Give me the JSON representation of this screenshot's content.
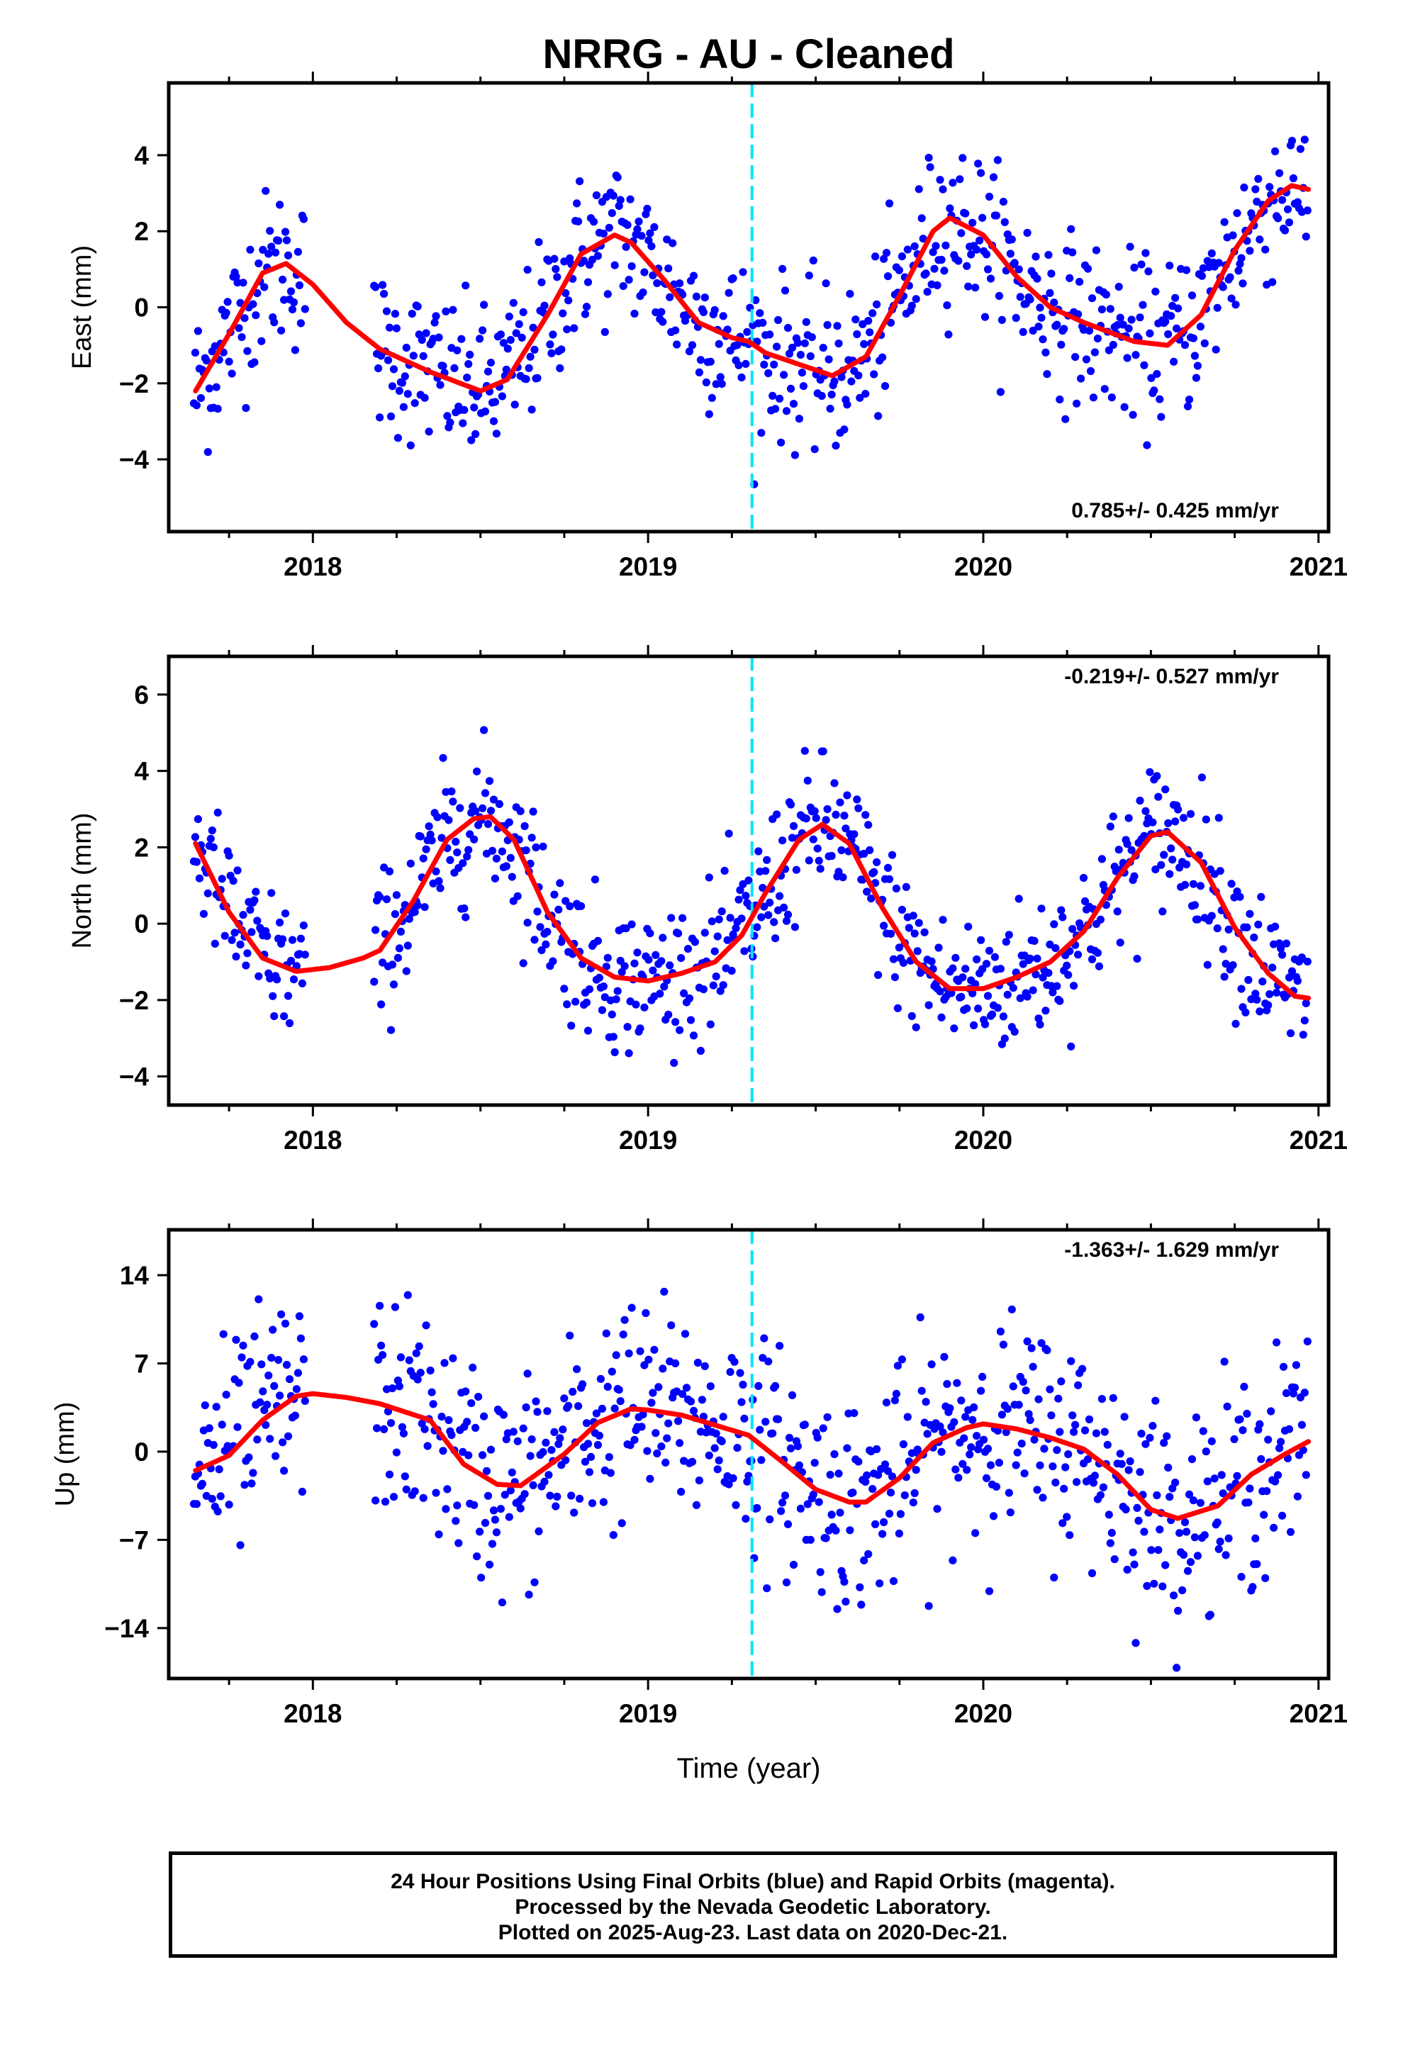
{
  "title": "NRRG  - AU - Cleaned",
  "xlabel": "Time (year)",
  "footer": {
    "line1": "24 Hour Positions Using Final Orbits (blue) and Rapid Orbits (magenta).",
    "line2": "Processed by the Nevada Geodetic Laboratory.",
    "line3": "Plotted on 2025-Aug-23. Last data on 2020-Dec-21."
  },
  "colors": {
    "points": "#0000ff",
    "fit": "#ff0000",
    "event": "#00e5ff",
    "axes": "#000000"
  },
  "chart_data": [
    {
      "type": "scatter",
      "name": "east",
      "ylabel": "East (mm)",
      "xlim": [
        2017.57,
        2021.03
      ],
      "ylim": [
        -5.9,
        5.9
      ],
      "yticks": [
        -4,
        -2,
        0,
        2,
        4
      ],
      "xticks": [
        2018,
        2019,
        2020,
        2021
      ],
      "rate_label": "0.785+/- 0.425 mm/yr",
      "rate_position": "bottom-right",
      "event_line_x": 2019.31,
      "fit_curve": {
        "x": [
          2017.65,
          2017.75,
          2017.85,
          2017.92,
          2018.0,
          2018.1,
          2018.2,
          2018.35,
          2018.5,
          2018.58,
          2018.7,
          2018.8,
          2018.9,
          2018.95,
          2019.05,
          2019.15,
          2019.25,
          2019.3,
          2019.35,
          2019.45,
          2019.55,
          2019.65,
          2019.75,
          2019.85,
          2019.9,
          2020.0,
          2020.1,
          2020.2,
          2020.3,
          2020.45,
          2020.55,
          2020.65,
          2020.75,
          2020.85,
          2020.92,
          2020.97
        ],
        "y": [
          -2.2,
          -0.7,
          0.9,
          1.15,
          0.6,
          -0.4,
          -1.1,
          -1.7,
          -2.2,
          -1.9,
          -0.2,
          1.4,
          1.9,
          1.7,
          0.7,
          -0.4,
          -0.8,
          -0.9,
          -1.2,
          -1.5,
          -1.8,
          -1.3,
          0.3,
          2.0,
          2.35,
          1.9,
          0.8,
          0.0,
          -0.4,
          -0.9,
          -1.0,
          -0.2,
          1.5,
          2.8,
          3.2,
          3.1
        ]
      }
    },
    {
      "type": "scatter",
      "name": "north",
      "ylabel": "North (mm)",
      "xlim": [
        2017.57,
        2021.03
      ],
      "ylim": [
        -4.75,
        7.0
      ],
      "yticks": [
        -4,
        -2,
        0,
        2,
        4,
        6
      ],
      "xticks": [
        2018,
        2019,
        2020,
        2021
      ],
      "rate_label": "-0.219+/- 0.527 mm/yr",
      "rate_position": "top-right",
      "event_line_x": 2019.31,
      "fit_curve": {
        "x": [
          2017.65,
          2017.75,
          2017.85,
          2017.95,
          2018.05,
          2018.15,
          2018.2,
          2018.3,
          2018.4,
          2018.48,
          2018.53,
          2018.6,
          2018.7,
          2018.8,
          2018.9,
          2019.0,
          2019.1,
          2019.2,
          2019.28,
          2019.35,
          2019.45,
          2019.52,
          2019.6,
          2019.7,
          2019.8,
          2019.9,
          2020.0,
          2020.1,
          2020.2,
          2020.3,
          2020.4,
          2020.5,
          2020.55,
          2020.65,
          2020.75,
          2020.85,
          2020.93,
          2020.97
        ],
        "y": [
          2.1,
          0.3,
          -0.9,
          -1.25,
          -1.15,
          -0.9,
          -0.7,
          0.6,
          2.2,
          2.75,
          2.8,
          2.2,
          0.3,
          -0.9,
          -1.4,
          -1.5,
          -1.3,
          -1.0,
          -0.3,
          0.8,
          2.2,
          2.6,
          2.1,
          0.4,
          -1.0,
          -1.7,
          -1.7,
          -1.4,
          -1.0,
          -0.2,
          1.2,
          2.3,
          2.4,
          1.6,
          -0.1,
          -1.3,
          -1.9,
          -1.95
        ]
      }
    },
    {
      "type": "scatter",
      "name": "up",
      "ylabel": "Up (mm)",
      "xlim": [
        2017.57,
        2021.03
      ],
      "ylim": [
        -18.0,
        17.6
      ],
      "yticks": [
        -14,
        -7,
        0,
        7,
        14
      ],
      "xticks": [
        2018,
        2019,
        2020,
        2021
      ],
      "rate_label": "-1.363+/- 1.629 mm/yr",
      "rate_position": "top-right",
      "event_line_x": 2019.31,
      "fit_curve": {
        "x": [
          2017.65,
          2017.75,
          2017.85,
          2017.95,
          2018.0,
          2018.1,
          2018.2,
          2018.35,
          2018.45,
          2018.55,
          2018.62,
          2018.75,
          2018.85,
          2018.95,
          2019.0,
          2019.1,
          2019.2,
          2019.3,
          2019.4,
          2019.5,
          2019.6,
          2019.65,
          2019.75,
          2019.85,
          2019.95,
          2020.0,
          2020.1,
          2020.2,
          2020.3,
          2020.4,
          2020.5,
          2020.58,
          2020.7,
          2020.8,
          2020.9,
          2020.97
        ],
        "y": [
          -1.5,
          -0.3,
          2.5,
          4.4,
          4.6,
          4.3,
          3.8,
          2.5,
          -1.0,
          -2.6,
          -2.7,
          -0.2,
          2.3,
          3.4,
          3.3,
          2.9,
          2.1,
          1.3,
          -0.8,
          -3.0,
          -4.0,
          -4.0,
          -2.1,
          0.7,
          1.9,
          2.2,
          1.8,
          1.1,
          0.2,
          -1.8,
          -4.6,
          -5.3,
          -4.3,
          -1.8,
          -0.2,
          0.8
        ]
      }
    }
  ]
}
